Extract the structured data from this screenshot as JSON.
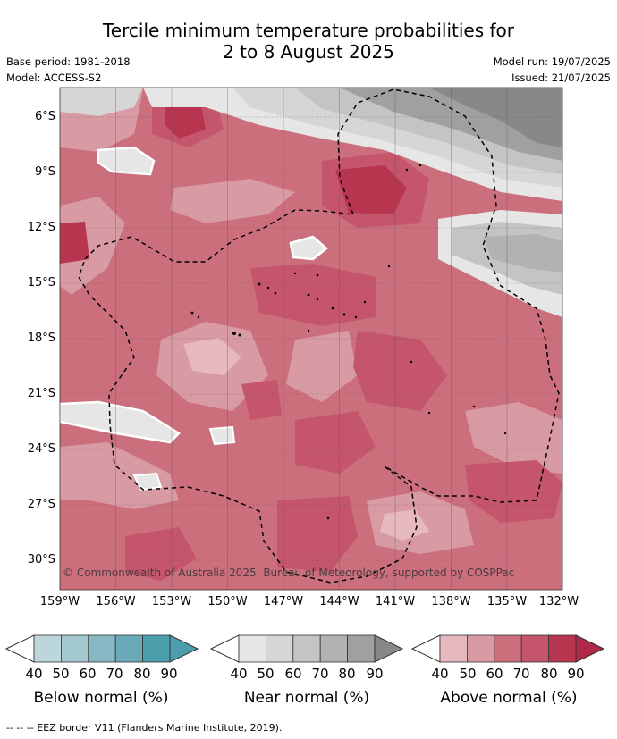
{
  "title_line1": "Tercile minimum temperature probabilities for",
  "title_line2": "2 to 8 August 2025",
  "base_period": "Base period: 1981-2018",
  "model": "Model: ACCESS-S2",
  "model_run": "Model run: 19/07/2025",
  "issued": "Issued: 21/07/2025",
  "latitude_labels": [
    "6°S",
    "9°S",
    "12°S",
    "15°S",
    "18°S",
    "21°S",
    "24°S",
    "27°S",
    "30°S"
  ],
  "longitude_labels": [
    "159°W",
    "156°W",
    "153°W",
    "150°W",
    "147°W",
    "144°W",
    "141°W",
    "138°W",
    "135°W",
    "132°W"
  ],
  "copyright": "© Commonwealth of Australia 2025, Bureau of Meteorology, supported by COSPPac",
  "colorbars": [
    {
      "title": "Below normal (%)",
      "ticks": [
        "40",
        "50",
        "60",
        "70",
        "80",
        "90"
      ],
      "colors": [
        "#bcd6dc",
        "#a3c8d0",
        "#87b8c3",
        "#6aaab8",
        "#4c9eac"
      ]
    },
    {
      "title": "Near normal (%)",
      "ticks": [
        "40",
        "50",
        "60",
        "70",
        "80",
        "90"
      ],
      "colors": [
        "#e6e6e6",
        "#d6d6d6",
        "#c4c4c4",
        "#b2b2b2",
        "#a0a0a0"
      ]
    },
    {
      "title": "Above normal (%)",
      "ticks": [
        "40",
        "50",
        "60",
        "70",
        "80",
        "90"
      ],
      "colors": [
        "#e6b8bf",
        "#d89aa3",
        "#cc6f7c",
        "#c4556a",
        "#b83550"
      ]
    }
  ],
  "colors": {
    "above_40": "#e6b8bf",
    "above_50": "#d89aa3",
    "above_60": "#cc6f7c",
    "above_70": "#c4556a",
    "above_80": "#b83550",
    "near_40": "#e6e6e6",
    "near_50": "#d6d6d6",
    "near_60": "#c4c4c4",
    "near_70": "#b2b2b2",
    "near_80": "#a0a0a0",
    "near_90": "#888888"
  },
  "footnote": "--  --  -- EEZ border V11 (Flanders Marine Institute, 2019)."
}
